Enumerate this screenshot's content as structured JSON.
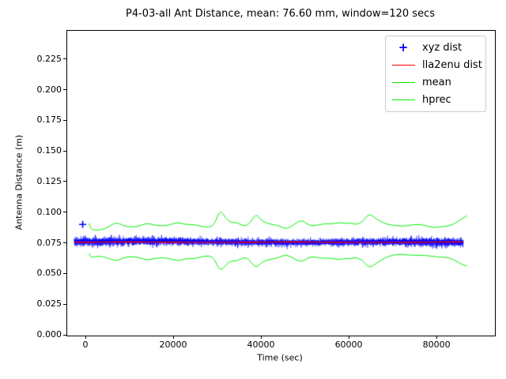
{
  "chart_data": {
    "type": "line",
    "title": "P4-03-all Ant Distance, mean: 76.60 mm, window=120 secs",
    "xlabel": "Time (sec)",
    "ylabel": "Antenna Distance (m)",
    "mean_value_m": 0.0766,
    "window_secs": 120,
    "xlim": [
      -4324,
      93135
    ],
    "ylim": [
      0,
      0.2487
    ],
    "grid": false,
    "background_color": "#ffffff",
    "spine_color": "#000000",
    "x_ticks": {
      "values": [
        0,
        20000,
        40000,
        60000,
        80000
      ],
      "labels": [
        "0",
        "20000",
        "40000",
        "60000",
        "80000"
      ]
    },
    "y_ticks": {
      "values": [
        0.0,
        0.025,
        0.05,
        0.075,
        0.1,
        0.125,
        0.15,
        0.175,
        0.2,
        0.225
      ],
      "labels": [
        "0.000",
        "0.025",
        "0.050",
        "0.075",
        "0.100",
        "0.125",
        "0.150",
        "0.175",
        "0.200",
        "0.225"
      ]
    },
    "legend": {
      "position": "upper right",
      "entries": [
        {
          "label": "xyz dist",
          "marker": "plus",
          "color": "#0000ff"
        },
        {
          "label": "lla2enu dist",
          "marker": "line",
          "color": "#ff0000"
        },
        {
          "label": "mean",
          "marker": "line",
          "color": "#00f000"
        },
        {
          "label": "hprec",
          "marker": "line",
          "color": "#00f000"
        }
      ]
    },
    "series": [
      {
        "name": "xyz dist",
        "type": "noisy-band",
        "color": "#0000ff",
        "t_start": -2700,
        "t_end": 85900,
        "center": 0.0763,
        "noise_halfwidth_typ": 0.003,
        "noise_halfwidth_max": 0.0055,
        "outlier_point": [
          -800,
          0.0907
        ]
      },
      {
        "name": "lla2enu dist",
        "type": "line",
        "color": "#ff0000",
        "linewidth": 1.4,
        "points": [
          [
            -2700,
            0.0762
          ],
          [
            85900,
            0.0762
          ]
        ]
      },
      {
        "name": "mean",
        "type": "line",
        "color": "#00f000",
        "linewidth": 1,
        "points": [
          [
            -2700,
            0.0766
          ],
          [
            85900,
            0.0766
          ]
        ]
      },
      {
        "name": "hprec upper",
        "type": "line",
        "color": "#00f000",
        "linewidth": 1,
        "points": [
          [
            700,
            0.0915
          ],
          [
            900,
            0.0868
          ],
          [
            2500,
            0.0858
          ],
          [
            4500,
            0.0872
          ],
          [
            6800,
            0.0928
          ],
          [
            8500,
            0.0895
          ],
          [
            10300,
            0.0885
          ],
          [
            12000,
            0.0892
          ],
          [
            13700,
            0.0918
          ],
          [
            15500,
            0.0902
          ],
          [
            17300,
            0.0894
          ],
          [
            19000,
            0.0902
          ],
          [
            20900,
            0.0926
          ],
          [
            22500,
            0.0906
          ],
          [
            24500,
            0.0906
          ],
          [
            26500,
            0.089
          ],
          [
            28000,
            0.0882
          ],
          [
            29200,
            0.0905
          ],
          [
            30500,
            0.103
          ],
          [
            31800,
            0.0958
          ],
          [
            33000,
            0.092
          ],
          [
            34100,
            0.0926
          ],
          [
            35500,
            0.09
          ],
          [
            36700,
            0.0893
          ],
          [
            38000,
            0.0958
          ],
          [
            38900,
            0.099
          ],
          [
            40000,
            0.0934
          ],
          [
            41500,
            0.0914
          ],
          [
            42800,
            0.0904
          ],
          [
            44200,
            0.0893
          ],
          [
            45600,
            0.0867
          ],
          [
            47200,
            0.0902
          ],
          [
            49000,
            0.0946
          ],
          [
            50500,
            0.0906
          ],
          [
            51600,
            0.0894
          ],
          [
            53000,
            0.0904
          ],
          [
            54500,
            0.0914
          ],
          [
            56000,
            0.0909
          ],
          [
            57500,
            0.0924
          ],
          [
            59000,
            0.0914
          ],
          [
            60200,
            0.092
          ],
          [
            61600,
            0.0904
          ],
          [
            63000,
            0.093
          ],
          [
            64500,
            0.1
          ],
          [
            66200,
            0.0948
          ],
          [
            68300,
            0.091
          ],
          [
            70000,
            0.0899
          ],
          [
            71900,
            0.0893
          ],
          [
            73500,
            0.0899
          ],
          [
            75500,
            0.0909
          ],
          [
            77200,
            0.0899
          ],
          [
            79100,
            0.0879
          ],
          [
            81000,
            0.0889
          ],
          [
            82700,
            0.0894
          ],
          [
            84200,
            0.0919
          ],
          [
            85600,
            0.0952
          ],
          [
            86800,
            0.0979
          ]
        ]
      },
      {
        "name": "hprec lower",
        "type": "line",
        "color": "#00f000",
        "linewidth": 1,
        "points": [
          [
            700,
            0.067
          ],
          [
            900,
            0.0632
          ],
          [
            2500,
            0.065
          ],
          [
            4500,
            0.064
          ],
          [
            6800,
            0.0604
          ],
          [
            8500,
            0.0636
          ],
          [
            10300,
            0.0645
          ],
          [
            12000,
            0.0639
          ],
          [
            13700,
            0.0614
          ],
          [
            15500,
            0.0629
          ],
          [
            17300,
            0.0636
          ],
          [
            19000,
            0.0629
          ],
          [
            20900,
            0.0608
          ],
          [
            22500,
            0.0628
          ],
          [
            24500,
            0.0626
          ],
          [
            26500,
            0.0644
          ],
          [
            28000,
            0.0653
          ],
          [
            29200,
            0.0628
          ],
          [
            30500,
            0.0521
          ],
          [
            31800,
            0.0576
          ],
          [
            33000,
            0.0611
          ],
          [
            34100,
            0.0606
          ],
          [
            35500,
            0.0631
          ],
          [
            36700,
            0.0638
          ],
          [
            38000,
            0.0576
          ],
          [
            38900,
            0.0556
          ],
          [
            40000,
            0.0599
          ],
          [
            41500,
            0.0619
          ],
          [
            42800,
            0.0627
          ],
          [
            44200,
            0.064
          ],
          [
            45600,
            0.0662
          ],
          [
            47200,
            0.063
          ],
          [
            49000,
            0.0598
          ],
          [
            50500,
            0.0634
          ],
          [
            51600,
            0.0644
          ],
          [
            53000,
            0.0634
          ],
          [
            54500,
            0.063
          ],
          [
            56000,
            0.0631
          ],
          [
            57500,
            0.0619
          ],
          [
            59000,
            0.0629
          ],
          [
            60200,
            0.0626
          ],
          [
            61600,
            0.0639
          ],
          [
            63000,
            0.0614
          ],
          [
            64500,
            0.0548
          ],
          [
            66200,
            0.0593
          ],
          [
            68300,
            0.0638
          ],
          [
            70000,
            0.0659
          ],
          [
            71900,
            0.0664
          ],
          [
            73500,
            0.0656
          ],
          [
            75500,
            0.0655
          ],
          [
            77200,
            0.0654
          ],
          [
            79100,
            0.0646
          ],
          [
            81000,
            0.064
          ],
          [
            82700,
            0.0636
          ],
          [
            84200,
            0.0611
          ],
          [
            85600,
            0.058
          ],
          [
            86800,
            0.0568
          ]
        ]
      }
    ]
  }
}
